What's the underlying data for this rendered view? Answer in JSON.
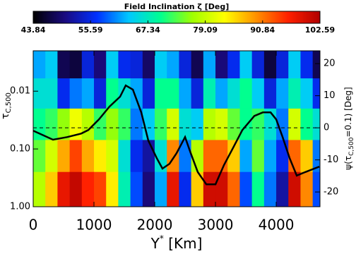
{
  "chart_data": {
    "type": "heatmap_line",
    "colorbar": {
      "title": "Field Inclination ζ [Deg]",
      "lim": [
        43.84,
        102.59
      ],
      "ticks": [
        43.84,
        55.59,
        67.34,
        79.09,
        90.84,
        102.59
      ]
    },
    "colormap": [
      "#000000",
      "#1a0a80",
      "#0030ff",
      "#00c8ff",
      "#00ff90",
      "#a0ff00",
      "#ffff00",
      "#ff9000",
      "#ff2000",
      "#b00000"
    ],
    "x_label": {
      "main": "Y",
      "sup": "*",
      "unit": "[Km]"
    },
    "y_label": {
      "symbol": "τ",
      "sub": "C,500"
    },
    "y2_label": {
      "before": "ψ(τ",
      "sub": "C,500",
      "after": "=0.1) [Deg]"
    },
    "xlim": [
      0,
      4720
    ],
    "xticks": [
      0,
      1000,
      2000,
      3000,
      4000
    ],
    "ylim": [
      0.002,
      1
    ],
    "log_y": true,
    "yticks": [
      {
        "value": 0.01,
        "label": "0.01"
      },
      {
        "value": 0.1,
        "label": "0.10"
      },
      {
        "value": 1,
        "label": "1.00"
      }
    ],
    "y2lim": [
      -24.6,
      24
    ],
    "y2ticks": [
      20,
      10,
      0,
      -10,
      -20
    ],
    "reference_line": 0,
    "x_edges": [
      0,
      200,
      400,
      600,
      800,
      1000,
      1200,
      1400,
      1600,
      1800,
      2000,
      2200,
      2400,
      2600,
      2800,
      3000,
      3200,
      3400,
      3600,
      3800,
      4000,
      4200,
      4400,
      4600,
      4720
    ],
    "y_edges": [
      0.002,
      0.006,
      0.02,
      0.07,
      0.25,
      1
    ],
    "z": [
      [
        62,
        64,
        48,
        47,
        55,
        50,
        64,
        56,
        55,
        49,
        64,
        62,
        55,
        48,
        62,
        50,
        56,
        64,
        55,
        47,
        55,
        64,
        56,
        48
      ],
      [
        66,
        66,
        56,
        60,
        62,
        55,
        70,
        66,
        62,
        55,
        70,
        70,
        62,
        55,
        68,
        62,
        66,
        70,
        64,
        55,
        62,
        68,
        64,
        56
      ],
      [
        70,
        72,
        76,
        82,
        78,
        72,
        76,
        72,
        60,
        64,
        72,
        80,
        66,
        64,
        78,
        80,
        74,
        70,
        72,
        66,
        60,
        80,
        70,
        66
      ],
      [
        74,
        80,
        88,
        94,
        88,
        84,
        80,
        66,
        56,
        52,
        66,
        90,
        60,
        78,
        92,
        92,
        86,
        62,
        74,
        62,
        56,
        92,
        86,
        60
      ],
      [
        78,
        86,
        98,
        101,
        96,
        94,
        84,
        68,
        58,
        50,
        62,
        98,
        56,
        86,
        100,
        100,
        92,
        58,
        70,
        60,
        52,
        100,
        90,
        58
      ]
    ],
    "series": [
      {
        "axis": "y2",
        "color": "#000000",
        "x": [
          0,
          326,
          558,
          791,
          907,
          1081,
          1256,
          1430,
          1523,
          1640,
          1779,
          1895,
          2035,
          2128,
          2244,
          2360,
          2500,
          2593,
          2709,
          2849,
          3000,
          3140,
          3291,
          3442,
          3640,
          3779,
          3907,
          4000,
          4105,
          4221,
          4337,
          4477,
          4709
        ],
        "values": [
          -0.9,
          -3.7,
          -2.9,
          -1.8,
          -0.7,
          2.6,
          6.6,
          9.7,
          13.2,
          11.9,
          4.8,
          -4.0,
          -9.5,
          -12.7,
          -11.2,
          -7.9,
          -2.9,
          -7.9,
          -13.8,
          -17.6,
          -17.6,
          -11.6,
          -6.2,
          -0.7,
          3.7,
          4.8,
          4.8,
          2.6,
          -2.9,
          -9.5,
          -14.9,
          -13.8,
          -12.1
        ]
      }
    ]
  }
}
